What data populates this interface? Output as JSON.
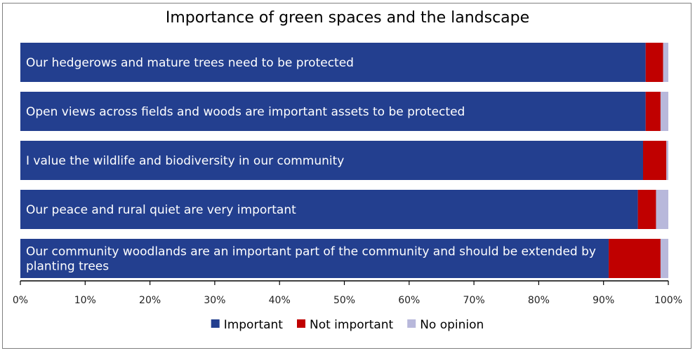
{
  "chart_data": {
    "type": "bar",
    "orientation": "horizontal",
    "stacked": true,
    "title": "Importance of green spaces and the landscape",
    "xlabel": "",
    "ylabel": "",
    "xlim": [
      0,
      100
    ],
    "x_ticks": [
      "0%",
      "10%",
      "20%",
      "30%",
      "40%",
      "50%",
      "60%",
      "70%",
      "80%",
      "90%",
      "100%"
    ],
    "grid": false,
    "legend_position": "bottom",
    "categories": [
      "Our hedgerows and mature trees need to be protected",
      "Open views across fields and woods are important assets to be protected",
      "I value the wildlife and biodiversity in our community",
      "Our peace and rural quiet are very important",
      "Our community woodlands are an important part of the community and should be extended by planting trees"
    ],
    "series": [
      {
        "name": "Important",
        "color": "#233f8f",
        "values": [
          96.5,
          96.5,
          96.1,
          95.3,
          90.8
        ]
      },
      {
        "name": "Not important",
        "color": "#c00000",
        "values": [
          2.7,
          2.3,
          3.6,
          2.8,
          8.0
        ]
      },
      {
        "name": "No opinion",
        "color": "#b8b8db",
        "values": [
          0.8,
          1.2,
          0.3,
          1.9,
          1.2
        ]
      }
    ]
  }
}
